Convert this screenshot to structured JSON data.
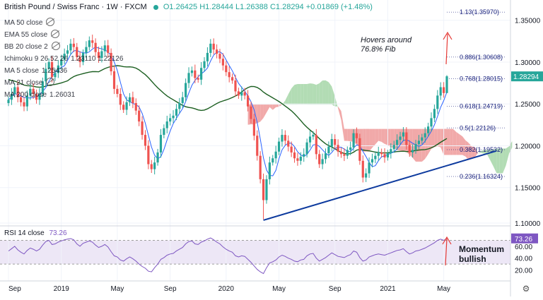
{
  "header": {
    "title": "British Pound / Swiss Franc · 1W · FXCM",
    "open": "O1.26425",
    "high": "H1.28444",
    "low": "L1.26388",
    "close": "C1.28294",
    "change": "+0.01869 (+1.48%)"
  },
  "indicators": [
    {
      "label": "MA 50 close",
      "value": "",
      "hidden": true
    },
    {
      "label": "EMA 55 close",
      "value": "",
      "hidden": true
    },
    {
      "label": "BB 20 close 2",
      "value": "",
      "hidden": true
    },
    {
      "label": "Ichimoku 9 26 52 26",
      "value": "1.23110  1.22126",
      "hidden": false
    },
    {
      "label": "MA 5 close",
      "value": "1.25436",
      "hidden": false
    },
    {
      "label": "MA 21 close",
      "value": "",
      "hidden": true
    },
    {
      "label": "MA 200 close",
      "value": "1.26031",
      "hidden": false
    }
  ],
  "annotations": {
    "fib_note_line1": "Hovers around",
    "fib_note_line2": "76.8% Fib",
    "momentum_line1": "Momentum",
    "momentum_line2": "bullish"
  },
  "rsi": {
    "label": "RSI 14 close",
    "value": "73.26"
  },
  "colors": {
    "up": "#26a69a",
    "down": "#ef5350",
    "ma200": "#1b5e20",
    "ma5": "#2962ff",
    "cloud_bull": "#a5d6a7",
    "cloud_bear": "#ef9a9a",
    "trendline": "#0d3a9e",
    "rsi_line": "#7e57c2",
    "rsi_band": "#ede7f6",
    "fib": "#1a237e",
    "arrow": "#e53935"
  },
  "chart_data": {
    "type": "candlestick",
    "title": "British Pound / Swiss Franc · 1W · FXCM",
    "ylim": [
      1.1,
      1.37
    ],
    "y_ticks": [
      "1.35000",
      "1.30000",
      "1.25000",
      "1.20000",
      "1.15000",
      "1.10000"
    ],
    "x_ticks": [
      "Sep",
      "2019",
      "May",
      "Sep",
      "2020",
      "May",
      "Sep",
      "2021",
      "May"
    ],
    "last_price": "1.28294",
    "fib_levels": [
      {
        "label": "1.13(1.35970)",
        "value": 1.3597
      },
      {
        "label": "0.886(1.30608)",
        "value": 1.30608
      },
      {
        "label": "0.768(1.28015)",
        "value": 1.28015
      },
      {
        "label": "0.618(1.24719)",
        "value": 1.24719
      },
      {
        "label": "0.5(1.22126)",
        "value": 1.22126
      },
      {
        "label": "0.382(1.19532)",
        "value": 1.19532
      },
      {
        "label": "0.236(1.16324)",
        "value": 1.16324
      }
    ],
    "closes": [
      1.255,
      1.262,
      1.27,
      1.258,
      1.252,
      1.247,
      1.26,
      1.268,
      1.262,
      1.255,
      1.262,
      1.277,
      1.292,
      1.3,
      1.282,
      1.287,
      1.296,
      1.303,
      1.31,
      1.314,
      1.322,
      1.318,
      1.306,
      1.3,
      1.311,
      1.318,
      1.326,
      1.323,
      1.312,
      1.305,
      1.313,
      1.32,
      1.311,
      1.289,
      1.268,
      1.262,
      1.249,
      1.243,
      1.252,
      1.258,
      1.251,
      1.242,
      1.229,
      1.213,
      1.2,
      1.178,
      1.172,
      1.18,
      1.192,
      1.213,
      1.221,
      1.229,
      1.233,
      1.236,
      1.244,
      1.251,
      1.258,
      1.275,
      1.287,
      1.29,
      1.281,
      1.279,
      1.293,
      1.301,
      1.311,
      1.322,
      1.315,
      1.31,
      1.304,
      1.296,
      1.288,
      1.282,
      1.278,
      1.265,
      1.26,
      1.264,
      1.26,
      1.247,
      1.232,
      1.212,
      1.188,
      1.16,
      1.135,
      1.16,
      1.18,
      1.185,
      1.193,
      1.205,
      1.213,
      1.206,
      1.199,
      1.192,
      1.185,
      1.182,
      1.187,
      1.19,
      1.204,
      1.211,
      1.213,
      1.19,
      1.178,
      1.184,
      1.191,
      1.199,
      1.208,
      1.201,
      1.193,
      1.19,
      1.188,
      1.195,
      1.198,
      1.215,
      1.209,
      1.182,
      1.162,
      1.167,
      1.18,
      1.184,
      1.188,
      1.192,
      1.19,
      1.186,
      1.191,
      1.196,
      1.201,
      1.207,
      1.211,
      1.216,
      1.201,
      1.192,
      1.195,
      1.202,
      1.206,
      1.21,
      1.215,
      1.223,
      1.233,
      1.244,
      1.26,
      1.27,
      1.263,
      1.283
    ]
  },
  "rsi_data": {
    "ticks": [
      "60.00",
      "40.00",
      "20.00"
    ],
    "values": [
      52,
      56,
      60,
      54,
      50,
      47,
      53,
      57,
      55,
      52,
      55,
      62,
      68,
      70,
      63,
      64,
      67,
      69,
      71,
      72,
      73,
      71,
      64,
      60,
      65,
      67,
      69,
      67,
      62,
      58,
      60,
      63,
      59,
      51,
      44,
      42,
      37,
      35,
      39,
      42,
      39,
      35,
      30,
      26,
      23,
      18,
      17,
      24,
      30,
      38,
      41,
      45,
      47,
      48,
      52,
      55,
      58,
      64,
      68,
      69,
      64,
      63,
      67,
      69,
      72,
      74,
      71,
      67,
      64,
      59,
      55,
      52,
      50,
      44,
      42,
      44,
      43,
      38,
      33,
      27,
      21,
      17,
      14,
      24,
      32,
      34,
      37,
      42,
      45,
      43,
      40,
      38,
      35,
      34,
      37,
      38,
      44,
      47,
      48,
      40,
      35,
      38,
      41,
      45,
      49,
      46,
      43,
      42,
      41,
      44,
      46,
      52,
      50,
      41,
      35,
      37,
      42,
      44,
      46,
      47,
      46,
      45,
      47,
      49,
      51,
      53,
      54,
      56,
      51,
      47,
      49,
      52,
      53,
      55,
      57,
      60,
      63,
      66,
      70,
      72,
      70,
      73.26
    ]
  }
}
